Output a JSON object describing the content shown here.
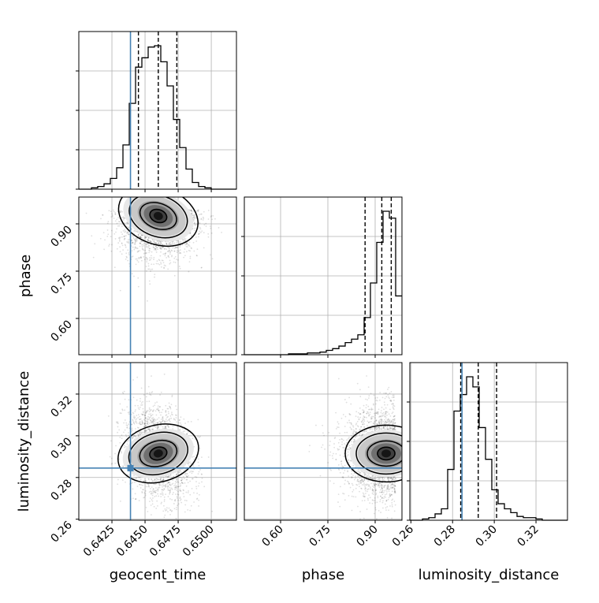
{
  "colors": {
    "truth": "#4682b4",
    "hist": "#000000",
    "grid": "#b0b0b0",
    "scatter": "#000000"
  },
  "axis_labels": {
    "geocent_time": "geocent_time",
    "phase": "phase",
    "luminosity_distance": "luminosity_distance"
  },
  "chart_data": {
    "type": "corner",
    "parameters": [
      "geocent_time",
      "phase",
      "luminosity_distance"
    ],
    "truths": {
      "geocent_time": 0.6439,
      "phase": null,
      "luminosity_distance": 0.2845
    },
    "ranges": {
      "geocent_time": [
        0.64,
        0.6519
      ],
      "phase": [
        0.485,
        0.985
      ],
      "luminosity_distance": [
        0.2595,
        0.3351
      ]
    },
    "ticks": {
      "geocent_time": [
        "0.6425",
        "0.6450",
        "0.6475",
        "0.6500"
      ],
      "phase": [
        "0.60",
        "0.75",
        "0.90"
      ],
      "luminosity_distance": [
        "0.26",
        "0.28",
        "0.30",
        "0.32"
      ]
    },
    "quantiles": {
      "geocent_time": [
        0.6445,
        0.646,
        0.6474
      ],
      "phase": [
        0.868,
        0.921,
        0.951
      ],
      "luminosity_distance": [
        0.2839,
        0.2923,
        0.3011
      ]
    },
    "histograms": {
      "geocent_time": {
        "bin_edges_from": 0.64,
        "bin_width": 0.000476,
        "counts": [
          0,
          0,
          1,
          2,
          4,
          8,
          16,
          33,
          64,
          91,
          98,
          106,
          107,
          95,
          77,
          52,
          31,
          15,
          5,
          2,
          1,
          0,
          0,
          0,
          0
        ]
      },
      "phase": {
        "bin_edges_from": 0.485,
        "bin_width": 0.02,
        "counts": [
          0,
          0,
          0,
          0,
          0,
          0,
          0,
          1,
          1,
          1,
          2,
          2,
          3,
          5,
          7,
          10,
          14,
          18,
          23,
          43,
          83,
          130,
          166,
          158,
          68
        ]
      },
      "luminosity_distance": {
        "bin_edges_from": 0.2595,
        "bin_width": 0.003024,
        "counts": [
          0,
          0,
          1,
          2,
          5,
          9,
          40,
          86,
          99,
          113,
          105,
          73,
          48,
          24,
          13,
          9,
          6,
          3,
          2,
          2,
          1,
          0,
          0,
          0,
          0
        ]
      }
    },
    "density_peaks": {
      "phase_vs_geocent_time": {
        "geocent_time": 0.646,
        "phase": 0.925
      },
      "luminosity_distance_vs_geocent_time": {
        "geocent_time": 0.646,
        "luminosity_distance": 0.2915
      },
      "luminosity_distance_vs_phase": {
        "phase": 0.935,
        "luminosity_distance": 0.2915
      }
    },
    "grid": true
  }
}
